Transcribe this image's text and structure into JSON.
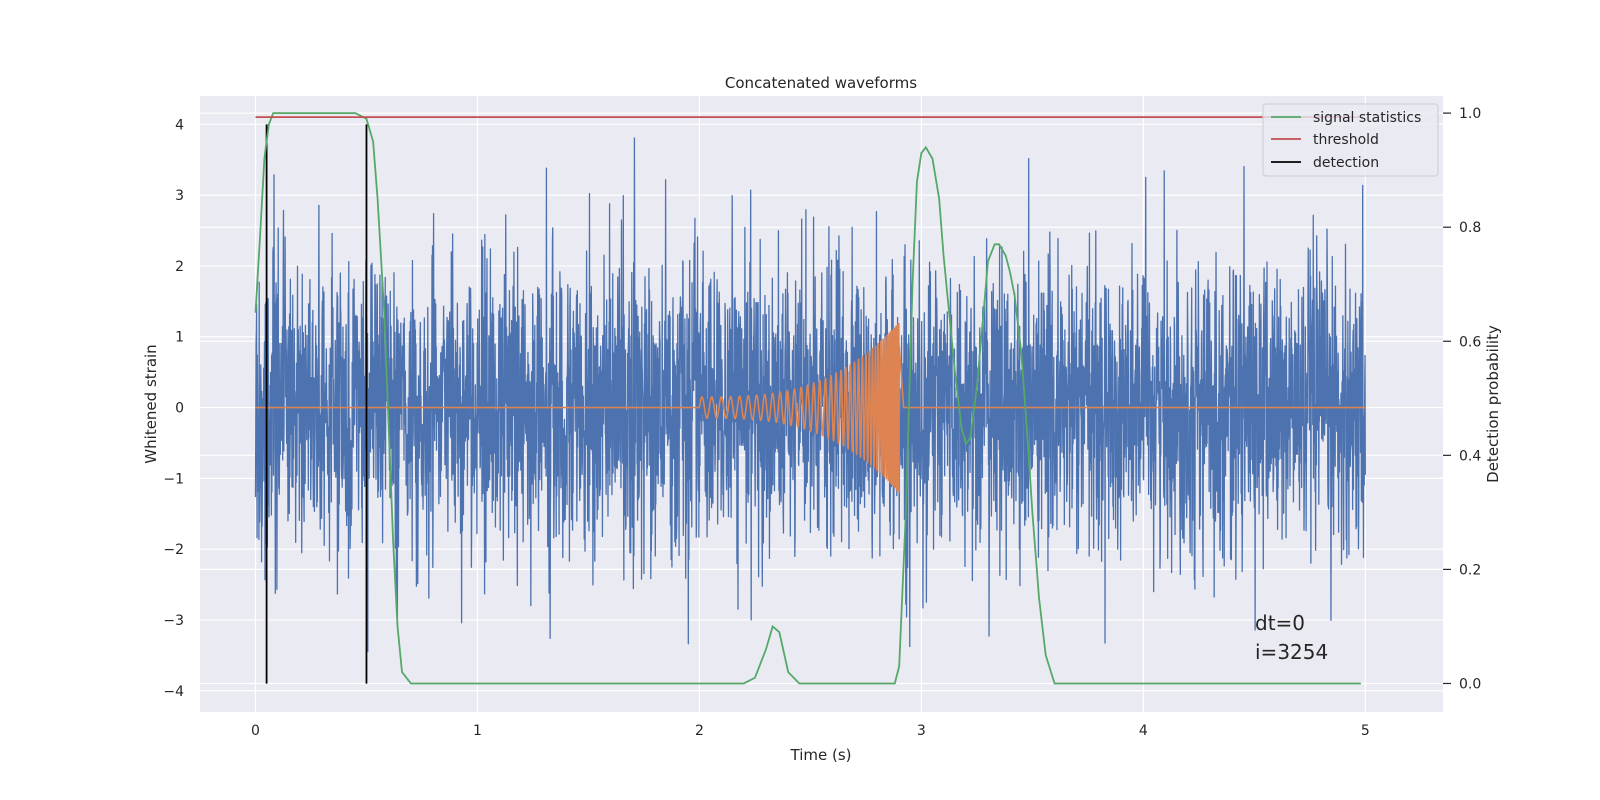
{
  "chart_data": {
    "type": "line",
    "title": "Concatenated waveforms",
    "xlabel": "Time (s)",
    "ylabel": "Whitened strain",
    "y2label": "Detection probability",
    "xlim": [
      -0.25,
      5.35
    ],
    "ylim": [
      -4.3,
      4.4
    ],
    "y2lim": [
      -0.05,
      1.03
    ],
    "x_ticks": [
      0,
      1,
      2,
      3,
      4,
      5
    ],
    "y_ticks": [
      -4,
      -3,
      -2,
      -1,
      0,
      1,
      2,
      3,
      4
    ],
    "y2_ticks": [
      0.0,
      0.2,
      0.4,
      0.6,
      0.8,
      1.0
    ],
    "y_tick_labels": [
      "−4",
      "−3",
      "−2",
      "−1",
      "0",
      "1",
      "2",
      "3",
      "4"
    ],
    "y2_tick_labels": [
      "0.0",
      "0.2",
      "0.4",
      "0.6",
      "0.8",
      "1.0"
    ],
    "grid": true,
    "legend_position": "top-right",
    "colors": {
      "noise": "#4c72b0",
      "waveform": "#dd8452",
      "signal_statistics": "#55a868",
      "threshold": "#c44e52",
      "detection": "#000000",
      "axes_bg": "#eaeaf2",
      "grid": "#ffffff"
    },
    "series": [
      {
        "name": "signal statistics",
        "axis": "right",
        "x": [
          0.0,
          0.02,
          0.04,
          0.06,
          0.08,
          0.1,
          0.2,
          0.3,
          0.4,
          0.45,
          0.5,
          0.53,
          0.55,
          0.58,
          0.6,
          0.62,
          0.64,
          0.66,
          0.7,
          1.0,
          1.5,
          2.0,
          2.2,
          2.25,
          2.3,
          2.33,
          2.36,
          2.4,
          2.45,
          2.6,
          2.8,
          2.88,
          2.9,
          2.93,
          2.96,
          2.98,
          3.0,
          3.02,
          3.05,
          3.08,
          3.1,
          3.15,
          3.18,
          3.2,
          3.22,
          3.25,
          3.28,
          3.3,
          3.33,
          3.35,
          3.38,
          3.4,
          3.42,
          3.45,
          3.48,
          3.5,
          3.53,
          3.56,
          3.6,
          3.7,
          4.0,
          4.5,
          4.98
        ],
        "y": [
          0.65,
          0.78,
          0.92,
          0.98,
          1.0,
          1.0,
          1.0,
          1.0,
          1.0,
          1.0,
          0.99,
          0.95,
          0.85,
          0.65,
          0.45,
          0.25,
          0.1,
          0.02,
          0.0,
          0.0,
          0.0,
          0.0,
          0.0,
          0.01,
          0.06,
          0.1,
          0.09,
          0.02,
          0.0,
          0.0,
          0.0,
          0.0,
          0.03,
          0.3,
          0.7,
          0.88,
          0.93,
          0.94,
          0.92,
          0.85,
          0.75,
          0.55,
          0.45,
          0.42,
          0.43,
          0.52,
          0.65,
          0.74,
          0.77,
          0.77,
          0.75,
          0.72,
          0.68,
          0.58,
          0.42,
          0.3,
          0.15,
          0.05,
          0.0,
          0.0,
          0.0,
          0.0,
          0.0
        ]
      },
      {
        "name": "threshold",
        "axis": "right",
        "x": [
          0.0,
          4.98
        ],
        "y": [
          0.993,
          0.993
        ]
      },
      {
        "name": "detection",
        "axis": "left",
        "segments": [
          {
            "x": 0.05,
            "y": [
              -3.9,
              4.0
            ]
          },
          {
            "x": 0.5,
            "y": [
              -3.9,
              4.0
            ]
          }
        ]
      }
    ],
    "noise": {
      "axis": "left",
      "x_range": [
        0.0,
        5.0
      ],
      "typical_amplitude": 1.0,
      "max_abs": 4.0
    },
    "waveform": {
      "axis": "left",
      "x_range": [
        2.0,
        2.9
      ],
      "peak_amplitude": 1.2,
      "peak_time": 2.9
    },
    "annotation": {
      "dt": "dt=0",
      "i": "i=3254"
    }
  }
}
